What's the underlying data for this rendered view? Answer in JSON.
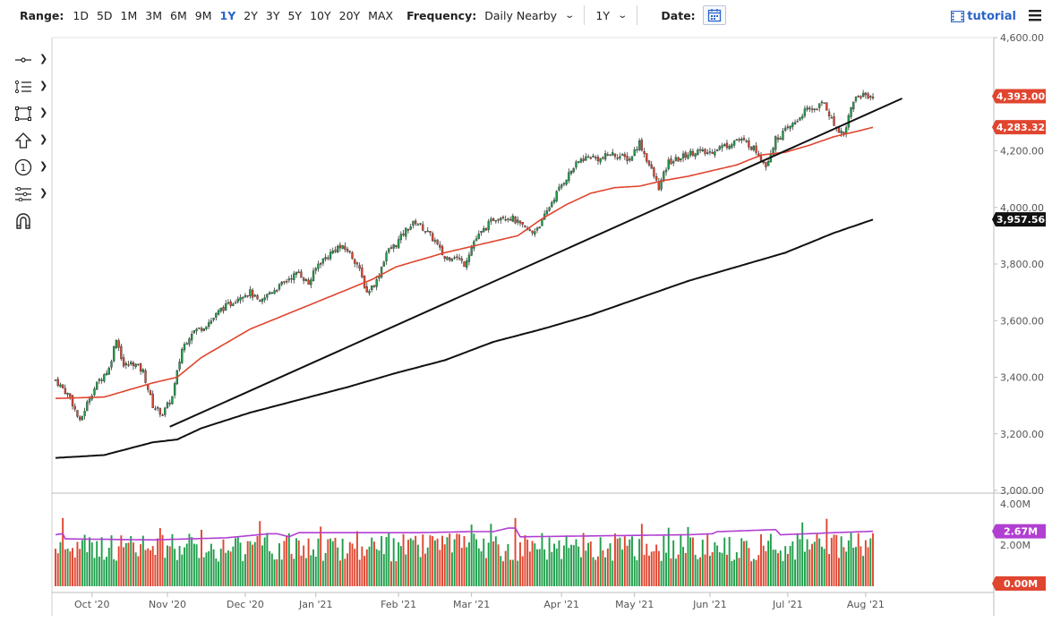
{
  "toolbar": {
    "range_label": "Range:",
    "ranges": [
      "1D",
      "5D",
      "1M",
      "3M",
      "6M",
      "9M",
      "1Y",
      "2Y",
      "3Y",
      "5Y",
      "10Y",
      "20Y",
      "MAX"
    ],
    "active_range": "1Y",
    "frequency_label": "Frequency:",
    "frequency_value": "Daily Nearby",
    "period_value": "1Y",
    "date_label": "Date:",
    "tutorial_label": "tutorial"
  },
  "side_tools": [
    "crosshair-tool-icon",
    "line-tools-icon",
    "shape-tools-icon",
    "arrow-tools-icon",
    "annotation-tools-icon",
    "fibonacci-tools-icon",
    "magnet-icon"
  ],
  "colors": {
    "up": "#1e9e4a",
    "down": "#e0452f",
    "ma50": "#e0452f",
    "ma200": "#111111",
    "volume_avg": "#b13fd1",
    "price_tag": "#e0452f",
    "ma200_tag": "#111111",
    "volume_tag": "#b13fd1",
    "grid": "#e6e6e6"
  },
  "chart_data": {
    "type": "candlestick",
    "x_labels": [
      "Oct '20",
      "Nov '20",
      "Dec '20",
      "Jan '21",
      "Feb '21",
      "Mar '21",
      "Apr '21",
      "May '21",
      "Jun '21",
      "Jul '21",
      "Aug '21"
    ],
    "y_ticks": [
      "4,600.00",
      "4,400.00",
      "4,200.00",
      "4,000.00",
      "3,800.00",
      "3,600.00",
      "3,400.00",
      "3,200.00",
      "3,000.00"
    ],
    "ylim": [
      3000,
      4600
    ],
    "volume_ticks": [
      "4.00M",
      "2.00M"
    ],
    "volume_ylim": [
      0,
      4
    ],
    "price_tags": [
      {
        "label": "4,393.00",
        "value": 4393,
        "kind": "last_price"
      },
      {
        "label": "4,283.32",
        "value": 4283.32,
        "kind": "ma50"
      },
      {
        "label": "3,957.56",
        "value": 3957.56,
        "kind": "ma200"
      }
    ],
    "volume_tags": [
      {
        "label": "2.67M",
        "value": 2.67,
        "kind": "volume_average"
      },
      {
        "label": "0.00M",
        "value": 0,
        "kind": "zero"
      }
    ],
    "series": [
      {
        "name": "Price",
        "kind": "candles",
        "anchors": [
          [
            0,
            3390
          ],
          [
            6,
            3330
          ],
          [
            10,
            3240
          ],
          [
            14,
            3330
          ],
          [
            18,
            3390
          ],
          [
            22,
            3430
          ],
          [
            25,
            3540
          ],
          [
            28,
            3440
          ],
          [
            32,
            3450
          ],
          [
            36,
            3420
          ],
          [
            40,
            3300
          ],
          [
            44,
            3270
          ],
          [
            48,
            3330
          ],
          [
            52,
            3500
          ],
          [
            56,
            3560
          ],
          [
            60,
            3575
          ],
          [
            64,
            3600
          ],
          [
            68,
            3640
          ],
          [
            72,
            3660
          ],
          [
            76,
            3690
          ],
          [
            80,
            3700
          ],
          [
            84,
            3660
          ],
          [
            88,
            3700
          ],
          [
            92,
            3720
          ],
          [
            96,
            3750
          ],
          [
            100,
            3770
          ],
          [
            104,
            3730
          ],
          [
            108,
            3800
          ],
          [
            112,
            3830
          ],
          [
            116,
            3860
          ],
          [
            120,
            3850
          ],
          [
            124,
            3800
          ],
          [
            128,
            3700
          ],
          [
            132,
            3740
          ],
          [
            136,
            3840
          ],
          [
            140,
            3870
          ],
          [
            144,
            3920
          ],
          [
            148,
            3950
          ],
          [
            152,
            3920
          ],
          [
            156,
            3880
          ],
          [
            160,
            3820
          ],
          [
            164,
            3830
          ],
          [
            168,
            3800
          ],
          [
            172,
            3880
          ],
          [
            176,
            3920
          ],
          [
            180,
            3960
          ],
          [
            184,
            3970
          ],
          [
            188,
            3960
          ],
          [
            192,
            3930
          ],
          [
            196,
            3910
          ],
          [
            200,
            3950
          ],
          [
            204,
            4020
          ],
          [
            208,
            4080
          ],
          [
            212,
            4130
          ],
          [
            216,
            4170
          ],
          [
            220,
            4180
          ],
          [
            224,
            4170
          ],
          [
            228,
            4190
          ],
          [
            232,
            4180
          ],
          [
            236,
            4170
          ],
          [
            240,
            4230
          ],
          [
            244,
            4150
          ],
          [
            248,
            4070
          ],
          [
            252,
            4160
          ],
          [
            256,
            4170
          ],
          [
            260,
            4190
          ],
          [
            264,
            4200
          ],
          [
            268,
            4190
          ],
          [
            272,
            4210
          ],
          [
            276,
            4220
          ],
          [
            280,
            4240
          ],
          [
            284,
            4230
          ],
          [
            288,
            4200
          ],
          [
            292,
            4150
          ],
          [
            296,
            4240
          ],
          [
            300,
            4270
          ],
          [
            304,
            4300
          ],
          [
            308,
            4340
          ],
          [
            312,
            4350
          ],
          [
            316,
            4370
          ],
          [
            320,
            4290
          ],
          [
            324,
            4260
          ],
          [
            328,
            4380
          ],
          [
            332,
            4400
          ],
          [
            336,
            4390
          ]
        ]
      },
      {
        "name": "MA50",
        "kind": "line",
        "anchors": [
          [
            0,
            3325
          ],
          [
            20,
            3330
          ],
          [
            40,
            3380
          ],
          [
            50,
            3400
          ],
          [
            60,
            3470
          ],
          [
            80,
            3570
          ],
          [
            100,
            3640
          ],
          [
            120,
            3710
          ],
          [
            130,
            3745
          ],
          [
            140,
            3790
          ],
          [
            160,
            3840
          ],
          [
            170,
            3860
          ],
          [
            180,
            3880
          ],
          [
            190,
            3900
          ],
          [
            200,
            3960
          ],
          [
            210,
            4010
          ],
          [
            220,
            4050
          ],
          [
            230,
            4070
          ],
          [
            240,
            4075
          ],
          [
            250,
            4095
          ],
          [
            260,
            4110
          ],
          [
            280,
            4150
          ],
          [
            290,
            4185
          ],
          [
            300,
            4195
          ],
          [
            310,
            4220
          ],
          [
            320,
            4250
          ],
          [
            330,
            4270
          ],
          [
            336,
            4283
          ]
        ]
      },
      {
        "name": "MA200",
        "kind": "line",
        "anchors": [
          [
            0,
            3115
          ],
          [
            20,
            3125
          ],
          [
            40,
            3170
          ],
          [
            50,
            3180
          ],
          [
            60,
            3220
          ],
          [
            80,
            3275
          ],
          [
            100,
            3320
          ],
          [
            120,
            3365
          ],
          [
            140,
            3415
          ],
          [
            160,
            3460
          ],
          [
            180,
            3525
          ],
          [
            200,
            3570
          ],
          [
            220,
            3620
          ],
          [
            240,
            3680
          ],
          [
            260,
            3740
          ],
          [
            280,
            3790
          ],
          [
            300,
            3840
          ],
          [
            320,
            3910
          ],
          [
            336,
            3957
          ]
        ]
      },
      {
        "name": "Trendline",
        "kind": "line",
        "anchors": [
          [
            47,
            3225
          ],
          [
            348,
            4385
          ]
        ]
      }
    ],
    "volume_average_anchors": [
      [
        0,
        2.5
      ],
      [
        3,
        2.55
      ],
      [
        4,
        2.3
      ],
      [
        40,
        2.25
      ],
      [
        70,
        2.35
      ],
      [
        88,
        2.55
      ],
      [
        91,
        2.55
      ],
      [
        96,
        2.4
      ],
      [
        100,
        2.6
      ],
      [
        150,
        2.6
      ],
      [
        170,
        2.65
      ],
      [
        180,
        2.65
      ],
      [
        186,
        2.82
      ],
      [
        189,
        2.82
      ],
      [
        191,
        2.4
      ],
      [
        260,
        2.5
      ],
      [
        270,
        2.55
      ],
      [
        272,
        2.65
      ],
      [
        296,
        2.75
      ],
      [
        298,
        2.5
      ],
      [
        336,
        2.67
      ]
    ],
    "sessions": 337
  }
}
